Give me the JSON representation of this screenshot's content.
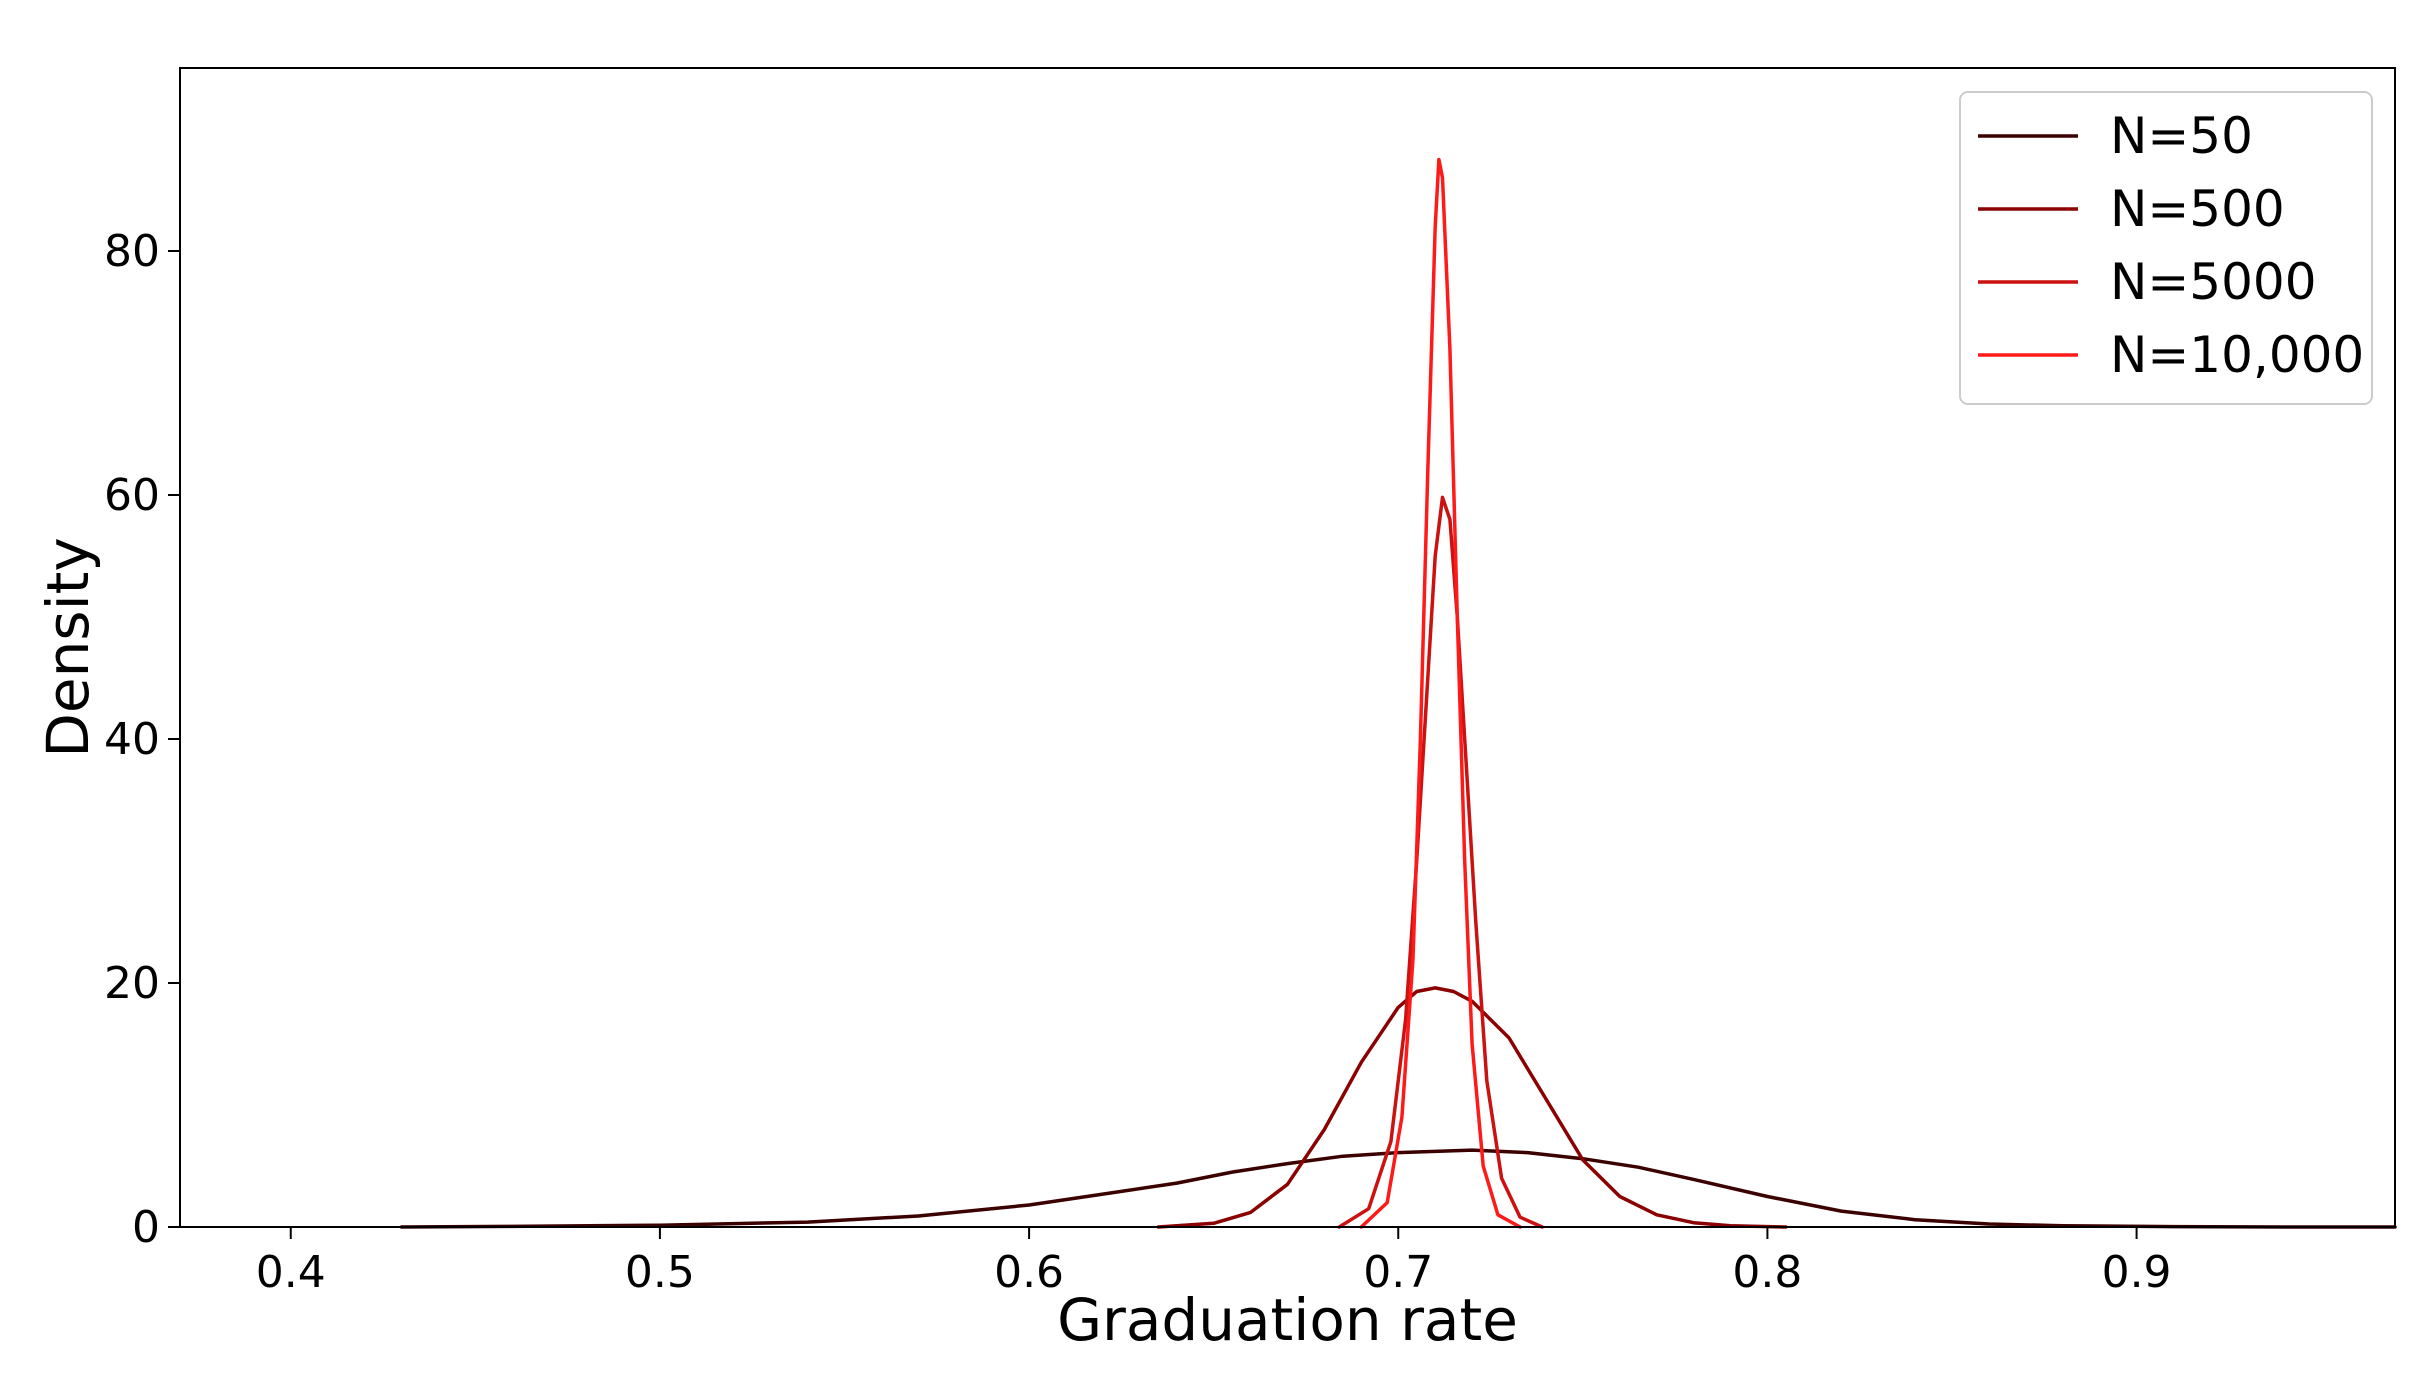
{
  "chart_data": {
    "type": "line",
    "xlabel": "Graduation rate",
    "ylabel": "Density",
    "xlim": [
      0.37,
      0.97
    ],
    "ylim": [
      0,
      95
    ],
    "xticks": [
      {
        "value": 0.4,
        "label": "0.4"
      },
      {
        "value": 0.5,
        "label": "0.5"
      },
      {
        "value": 0.6,
        "label": "0.6"
      },
      {
        "value": 0.7,
        "label": "0.7"
      },
      {
        "value": 0.8,
        "label": "0.8"
      },
      {
        "value": 0.9,
        "label": "0.9"
      }
    ],
    "yticks": [
      {
        "value": 0,
        "label": "0"
      },
      {
        "value": 20,
        "label": "20"
      },
      {
        "value": 40,
        "label": "40"
      },
      {
        "value": 60,
        "label": "60"
      },
      {
        "value": 80,
        "label": "80"
      }
    ],
    "grid": false,
    "legend": "top-right",
    "series": [
      {
        "name": "N=50",
        "color": "#3b0000",
        "x": [
          0.43,
          0.46,
          0.5,
          0.54,
          0.57,
          0.6,
          0.62,
          0.64,
          0.655,
          0.67,
          0.685,
          0.7,
          0.72,
          0.735,
          0.75,
          0.765,
          0.78,
          0.8,
          0.82,
          0.84,
          0.86,
          0.88,
          0.91,
          0.94,
          0.97
        ],
        "y": [
          0,
          0.05,
          0.15,
          0.4,
          0.9,
          1.8,
          2.7,
          3.6,
          4.5,
          5.2,
          5.8,
          6.1,
          6.3,
          6.1,
          5.6,
          4.9,
          3.9,
          2.5,
          1.3,
          0.6,
          0.25,
          0.1,
          0.03,
          0,
          0
        ]
      },
      {
        "name": "N=500",
        "color": "#8b0000",
        "x": [
          0.635,
          0.65,
          0.66,
          0.67,
          0.68,
          0.69,
          0.7,
          0.705,
          0.71,
          0.715,
          0.72,
          0.73,
          0.74,
          0.75,
          0.76,
          0.77,
          0.78,
          0.79,
          0.805
        ],
        "y": [
          0,
          0.3,
          1.2,
          3.5,
          8.0,
          13.5,
          18.0,
          19.3,
          19.6,
          19.3,
          18.5,
          15.5,
          10.5,
          5.5,
          2.5,
          1.0,
          0.35,
          0.1,
          0
        ]
      },
      {
        "name": "N=5000",
        "color": "#cc1111",
        "x": [
          0.684,
          0.692,
          0.698,
          0.702,
          0.705,
          0.708,
          0.71,
          0.712,
          0.714,
          0.716,
          0.718,
          0.721,
          0.724,
          0.728,
          0.733,
          0.739
        ],
        "y": [
          0,
          1.5,
          7.0,
          17.0,
          30.0,
          45.0,
          55.0,
          59.8,
          58.0,
          50.0,
          40.0,
          25.0,
          12.0,
          4.0,
          0.8,
          0
        ]
      },
      {
        "name": "N=10,000",
        "color": "#ff1a1a",
        "x": [
          0.69,
          0.697,
          0.701,
          0.704,
          0.706,
          0.708,
          0.71,
          0.711,
          0.712,
          0.714,
          0.716,
          0.718,
          0.72,
          0.723,
          0.727,
          0.733
        ],
        "y": [
          0,
          2.0,
          9.0,
          22.0,
          40.0,
          62.0,
          82.0,
          87.5,
          86.0,
          72.0,
          50.0,
          30.0,
          15.0,
          5.0,
          1.0,
          0
        ]
      }
    ]
  }
}
